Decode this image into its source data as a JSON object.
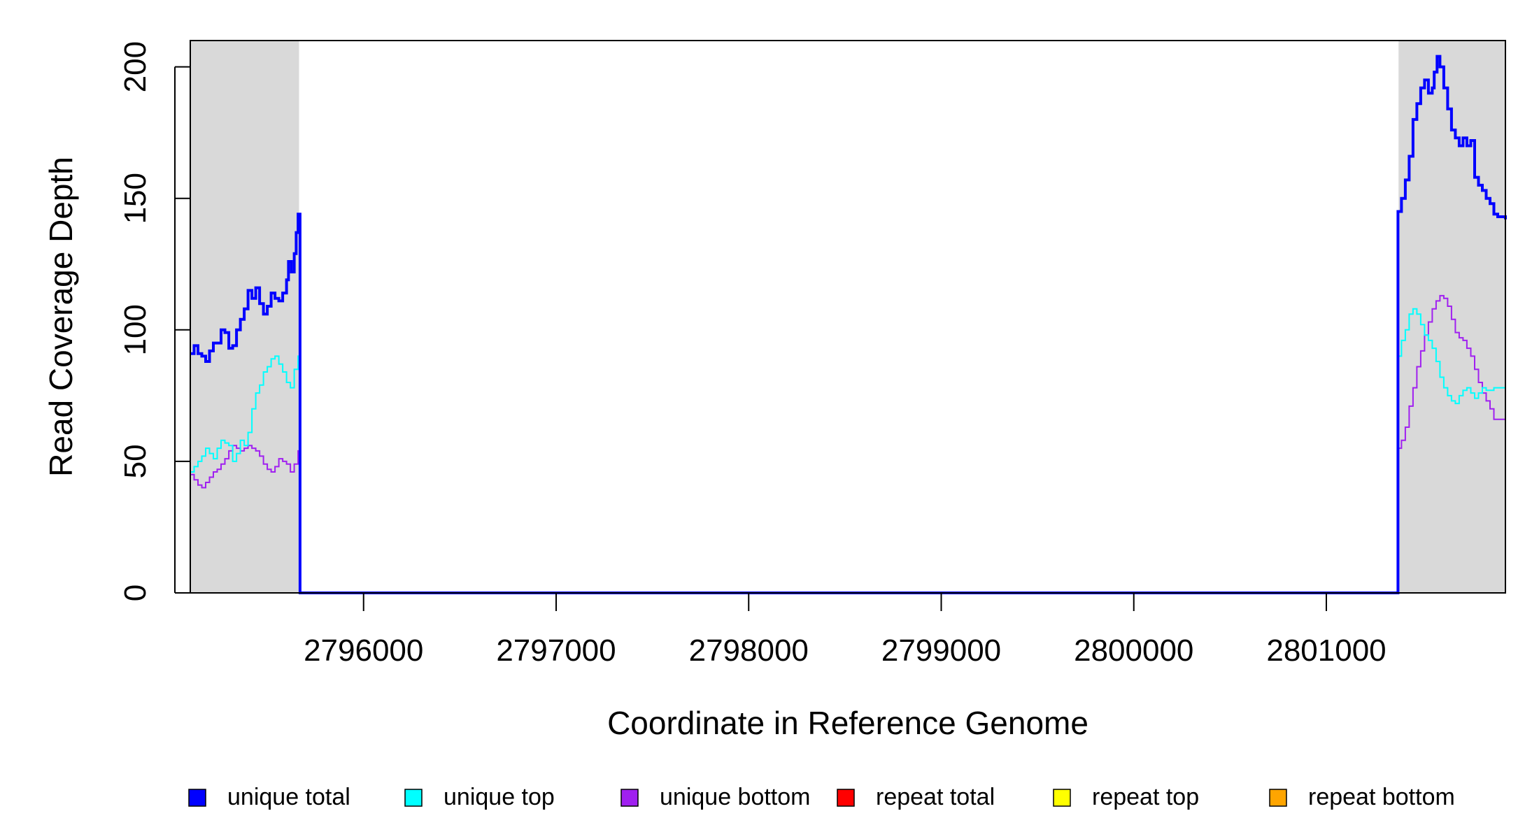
{
  "chart_data": {
    "type": "line",
    "xlabel": "Coordinate in Reference Genome",
    "ylabel": "Read Coverage Depth",
    "xlim": [
      2795100,
      2801930
    ],
    "ylim": [
      0,
      210
    ],
    "x_ticks": [
      2796000,
      2797000,
      2798000,
      2799000,
      2800000,
      2801000
    ],
    "x_tick_labels": [
      "2796000",
      "2797000",
      "2798000",
      "2799000",
      "2800000",
      "2801000"
    ],
    "y_ticks": [
      0,
      50,
      100,
      150,
      200
    ],
    "y_tick_labels": [
      "0",
      "50",
      "100",
      "150",
      "200"
    ],
    "shaded_regions": [
      {
        "x_start": 2795100,
        "x_end": 2795665
      },
      {
        "x_start": 2801375,
        "x_end": 2801930
      }
    ],
    "shade_color": "#d9d9d9",
    "series": [
      {
        "name": "unique total",
        "color": "#0000ff",
        "line_weight": "thick",
        "points": [
          [
            2795100,
            91
          ],
          [
            2795120,
            94
          ],
          [
            2795140,
            91
          ],
          [
            2795160,
            90
          ],
          [
            2795180,
            88
          ],
          [
            2795200,
            92
          ],
          [
            2795220,
            95
          ],
          [
            2795240,
            95
          ],
          [
            2795260,
            100
          ],
          [
            2795280,
            99
          ],
          [
            2795300,
            93
          ],
          [
            2795320,
            94
          ],
          [
            2795340,
            100
          ],
          [
            2795360,
            104
          ],
          [
            2795380,
            108
          ],
          [
            2795400,
            115
          ],
          [
            2795420,
            112
          ],
          [
            2795440,
            116
          ],
          [
            2795460,
            110
          ],
          [
            2795480,
            106
          ],
          [
            2795500,
            109
          ],
          [
            2795520,
            114
          ],
          [
            2795540,
            112
          ],
          [
            2795560,
            111
          ],
          [
            2795580,
            114
          ],
          [
            2795600,
            119
          ],
          [
            2795610,
            126
          ],
          [
            2795625,
            122
          ],
          [
            2795640,
            129
          ],
          [
            2795650,
            137
          ],
          [
            2795660,
            144
          ],
          [
            2795668,
            144
          ],
          [
            2795670,
            0
          ],
          [
            2801370,
            0
          ],
          [
            2801372,
            145
          ],
          [
            2801390,
            150
          ],
          [
            2801410,
            157
          ],
          [
            2801430,
            166
          ],
          [
            2801450,
            180
          ],
          [
            2801470,
            186
          ],
          [
            2801490,
            192
          ],
          [
            2801510,
            195
          ],
          [
            2801530,
            190
          ],
          [
            2801550,
            192
          ],
          [
            2801560,
            198
          ],
          [
            2801575,
            204
          ],
          [
            2801590,
            200
          ],
          [
            2801610,
            192
          ],
          [
            2801630,
            184
          ],
          [
            2801650,
            176
          ],
          [
            2801670,
            173
          ],
          [
            2801690,
            170
          ],
          [
            2801710,
            173
          ],
          [
            2801730,
            170
          ],
          [
            2801750,
            172
          ],
          [
            2801770,
            158
          ],
          [
            2801790,
            155
          ],
          [
            2801810,
            153
          ],
          [
            2801830,
            150
          ],
          [
            2801850,
            148
          ],
          [
            2801870,
            144
          ],
          [
            2801890,
            143
          ],
          [
            2801930,
            142
          ]
        ]
      },
      {
        "name": "unique top",
        "color": "#00ffff",
        "line_weight": "thin",
        "points": [
          [
            2795100,
            46
          ],
          [
            2795120,
            48
          ],
          [
            2795140,
            50
          ],
          [
            2795160,
            52
          ],
          [
            2795180,
            55
          ],
          [
            2795200,
            53
          ],
          [
            2795220,
            51
          ],
          [
            2795240,
            55
          ],
          [
            2795260,
            58
          ],
          [
            2795280,
            57
          ],
          [
            2795300,
            56
          ],
          [
            2795320,
            50
          ],
          [
            2795340,
            53
          ],
          [
            2795360,
            58
          ],
          [
            2795380,
            56
          ],
          [
            2795400,
            61
          ],
          [
            2795420,
            70
          ],
          [
            2795440,
            76
          ],
          [
            2795460,
            79
          ],
          [
            2795480,
            84
          ],
          [
            2795500,
            86
          ],
          [
            2795520,
            89
          ],
          [
            2795540,
            90
          ],
          [
            2795560,
            87
          ],
          [
            2795580,
            84
          ],
          [
            2795600,
            80
          ],
          [
            2795620,
            78
          ],
          [
            2795640,
            85
          ],
          [
            2795660,
            90
          ],
          [
            2795668,
            90
          ],
          [
            2795670,
            0
          ],
          [
            2801370,
            0
          ],
          [
            2801372,
            90
          ],
          [
            2801390,
            96
          ],
          [
            2801410,
            100
          ],
          [
            2801430,
            106
          ],
          [
            2801450,
            108
          ],
          [
            2801470,
            106
          ],
          [
            2801490,
            102
          ],
          [
            2801510,
            98
          ],
          [
            2801530,
            96
          ],
          [
            2801550,
            93
          ],
          [
            2801570,
            88
          ],
          [
            2801590,
            82
          ],
          [
            2801610,
            78
          ],
          [
            2801630,
            75
          ],
          [
            2801650,
            73
          ],
          [
            2801670,
            72
          ],
          [
            2801690,
            75
          ],
          [
            2801710,
            77
          ],
          [
            2801730,
            78
          ],
          [
            2801750,
            76
          ],
          [
            2801770,
            74
          ],
          [
            2801790,
            76
          ],
          [
            2801810,
            78
          ],
          [
            2801830,
            77
          ],
          [
            2801850,
            77
          ],
          [
            2801870,
            78
          ],
          [
            2801930,
            77
          ]
        ]
      },
      {
        "name": "unique bottom",
        "color": "#a020f0",
        "line_weight": "thin",
        "points": [
          [
            2795100,
            45
          ],
          [
            2795120,
            43
          ],
          [
            2795140,
            41
          ],
          [
            2795160,
            40
          ],
          [
            2795180,
            42
          ],
          [
            2795200,
            44
          ],
          [
            2795220,
            46
          ],
          [
            2795240,
            47
          ],
          [
            2795260,
            49
          ],
          [
            2795280,
            51
          ],
          [
            2795300,
            54
          ],
          [
            2795320,
            56
          ],
          [
            2795340,
            55
          ],
          [
            2795360,
            54
          ],
          [
            2795380,
            55
          ],
          [
            2795400,
            56
          ],
          [
            2795420,
            55
          ],
          [
            2795440,
            54
          ],
          [
            2795460,
            52
          ],
          [
            2795480,
            49
          ],
          [
            2795500,
            47
          ],
          [
            2795520,
            46
          ],
          [
            2795540,
            48
          ],
          [
            2795560,
            51
          ],
          [
            2795580,
            50
          ],
          [
            2795600,
            49
          ],
          [
            2795620,
            46
          ],
          [
            2795640,
            49
          ],
          [
            2795660,
            54
          ],
          [
            2795668,
            54
          ],
          [
            2795670,
            0
          ],
          [
            2801370,
            0
          ],
          [
            2801372,
            55
          ],
          [
            2801390,
            58
          ],
          [
            2801410,
            63
          ],
          [
            2801430,
            71
          ],
          [
            2801450,
            78
          ],
          [
            2801470,
            86
          ],
          [
            2801490,
            92
          ],
          [
            2801510,
            98
          ],
          [
            2801530,
            103
          ],
          [
            2801550,
            108
          ],
          [
            2801570,
            111
          ],
          [
            2801590,
            113
          ],
          [
            2801610,
            112
          ],
          [
            2801630,
            109
          ],
          [
            2801650,
            104
          ],
          [
            2801670,
            99
          ],
          [
            2801690,
            97
          ],
          [
            2801710,
            96
          ],
          [
            2801730,
            93
          ],
          [
            2801750,
            90
          ],
          [
            2801770,
            85
          ],
          [
            2801790,
            80
          ],
          [
            2801810,
            76
          ],
          [
            2801830,
            73
          ],
          [
            2801850,
            70
          ],
          [
            2801870,
            66
          ],
          [
            2801930,
            62
          ]
        ]
      },
      {
        "name": "repeat total",
        "color": "#ff0000",
        "line_weight": "thin",
        "points": [
          [
            2795100,
            0
          ],
          [
            2801930,
            0
          ]
        ]
      },
      {
        "name": "repeat top",
        "color": "#ffff00",
        "line_weight": "thin",
        "points": [
          [
            2795100,
            0
          ],
          [
            2801930,
            0
          ]
        ]
      },
      {
        "name": "repeat bottom",
        "color": "#ffa500",
        "line_weight": "thin",
        "points": [
          [
            2795100,
            0
          ],
          [
            2801930,
            0
          ]
        ]
      }
    ],
    "legend": {
      "position": "bottom",
      "items": [
        {
          "label": "unique total",
          "color": "#0000ff"
        },
        {
          "label": "unique top",
          "color": "#00ffff"
        },
        {
          "label": "unique bottom",
          "color": "#a020f0"
        },
        {
          "label": "repeat total",
          "color": "#ff0000"
        },
        {
          "label": "repeat top",
          "color": "#ffff00"
        },
        {
          "label": "repeat bottom",
          "color": "#ffa500"
        }
      ]
    },
    "grid": false
  }
}
